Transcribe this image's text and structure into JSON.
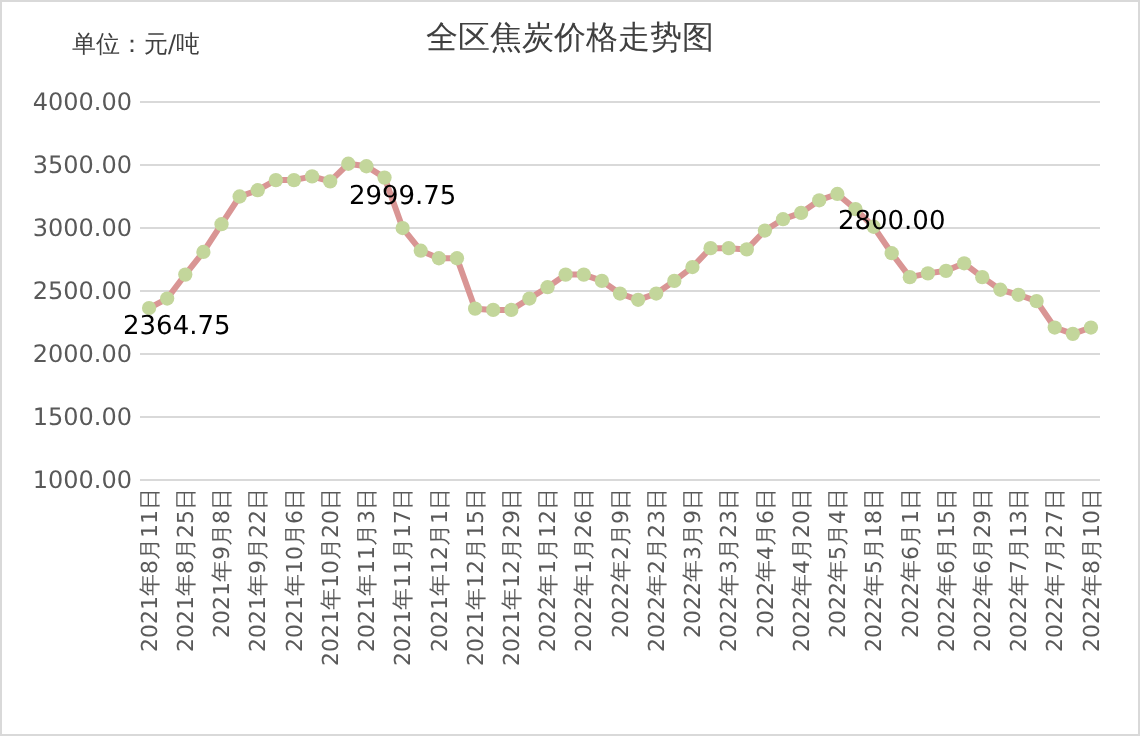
{
  "chart_data": {
    "type": "line",
    "title": "全区焦炭价格走势图",
    "annotations": [
      "单位：元/吨"
    ],
    "categories": [
      "2021年8月11日",
      null,
      "2021年8月25日",
      null,
      "2021年9月8日",
      null,
      "2021年9月22日",
      null,
      "2021年10月6日",
      null,
      "2021年10月20日",
      null,
      "2021年11月3日",
      null,
      "2021年11月17日",
      null,
      "2021年12月1日",
      null,
      "2021年12月15日",
      null,
      "2021年12月29日",
      null,
      "2022年1月12日",
      null,
      "2022年1月26日",
      null,
      "2022年2月9日",
      null,
      "2022年2月23日",
      null,
      "2022年3月9日",
      null,
      "2022年3月23日",
      null,
      "2022年4月6日",
      null,
      "2022年4月20日",
      null,
      "2022年5月4日",
      null,
      "2022年5月18日",
      null,
      "2022年6月1日",
      null,
      "2022年6月15日",
      null,
      "2022年6月29日",
      null,
      "2022年7月13日",
      null,
      "2022年7月27日",
      null,
      "2022年8月10日"
    ],
    "series": [
      {
        "color": "#d99594",
        "values": [
          2364.75,
          2440,
          2630,
          2810,
          3030,
          3250,
          3300,
          3380,
          3380,
          3410,
          3370,
          3510,
          3490,
          3400,
          2999.75,
          2820,
          2760,
          2760,
          2360,
          2350,
          2350,
          2440,
          2530,
          2630,
          2630,
          2580,
          2480,
          2430,
          2480,
          2580,
          2690,
          2840,
          2840,
          2830,
          2980,
          3070,
          3120,
          3220,
          3270,
          3150,
          3010,
          2800,
          2610,
          2640,
          2660,
          2720,
          2610,
          2510,
          2470,
          2420,
          2210,
          2160,
          2210
        ],
        "value_labels": [
          "2364.75",
          null,
          null,
          null,
          null,
          null,
          null,
          null,
          null,
          null,
          null,
          null,
          null,
          null,
          "2999.75",
          null,
          null,
          null,
          null,
          null,
          null,
          null,
          null,
          null,
          null,
          null,
          null,
          null,
          null,
          null,
          null,
          null,
          null,
          null,
          null,
          null,
          null,
          null,
          null,
          null,
          null,
          "2800.00",
          null,
          null,
          null,
          null,
          null,
          null,
          null,
          null,
          null,
          null,
          null
        ]
      }
    ],
    "ylim": [
      1000,
      4000
    ],
    "yticks": [
      {
        "value": 1000,
        "label": "1000.00"
      },
      {
        "value": 1500,
        "label": "1500.00"
      },
      {
        "value": 2000,
        "label": "2000.00"
      },
      {
        "value": 2500,
        "label": "2500.00"
      },
      {
        "value": 3000,
        "label": "3000.00"
      },
      {
        "value": 3500,
        "label": "3500.00"
      },
      {
        "value": 4000,
        "label": "4000.00"
      }
    ],
    "grid": "y",
    "marker": "circle",
    "line_style": "solid"
  }
}
